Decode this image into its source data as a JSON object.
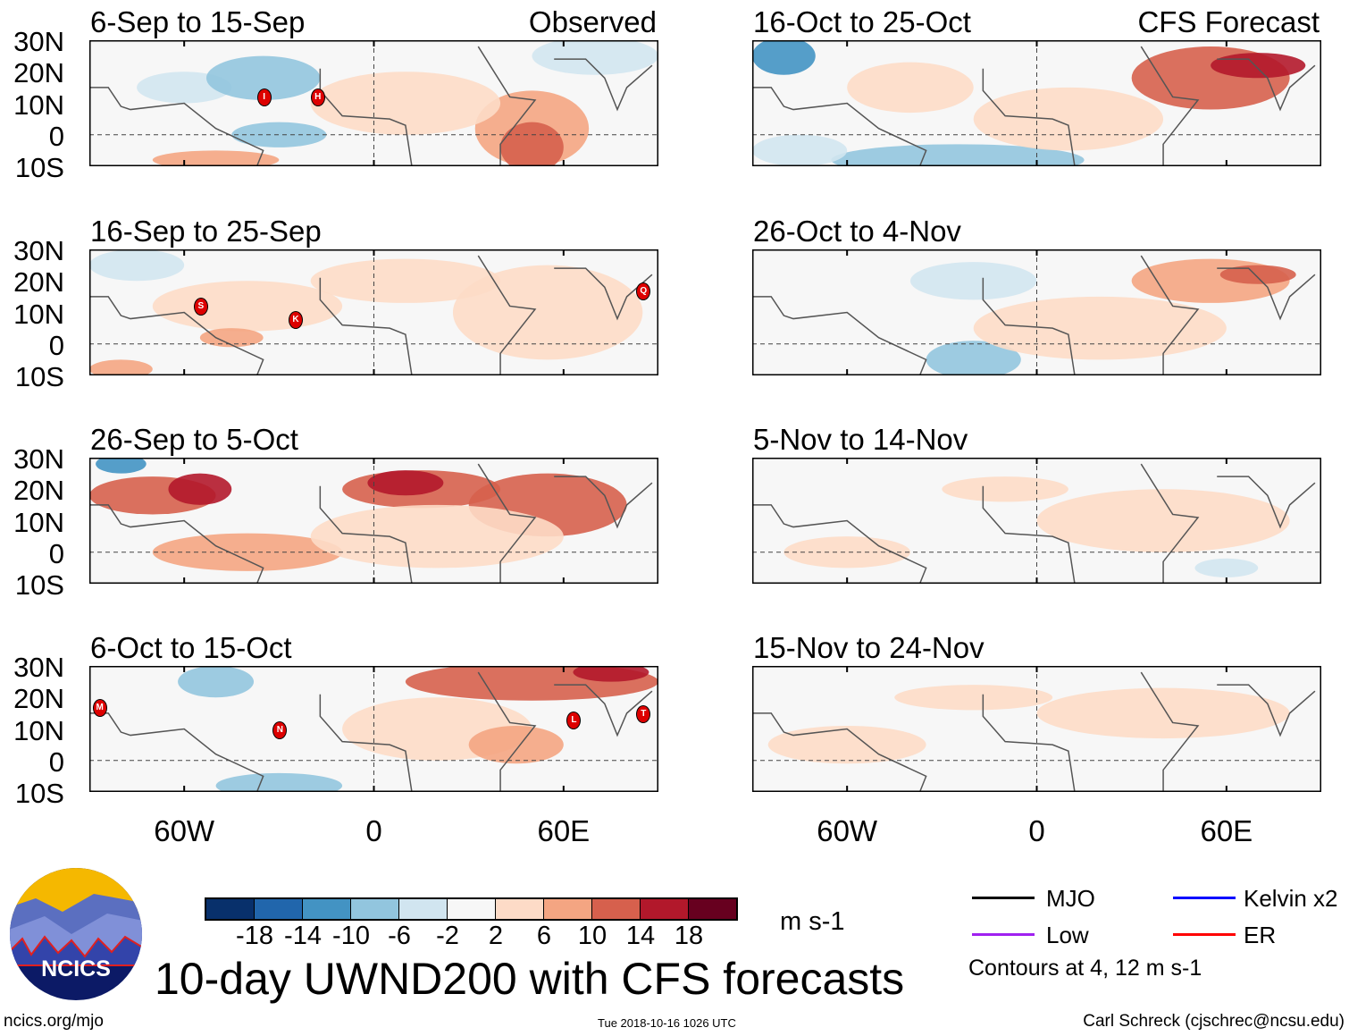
{
  "figure_title": "10-day UWND200 with CFS forecasts",
  "column_labels": {
    "left": "Observed",
    "right": "CFS Forecast"
  },
  "panels": [
    {
      "title": "6-Sep to 15-Sep",
      "column": "left",
      "storms": [
        "I",
        "H"
      ]
    },
    {
      "title": "16-Sep to 25-Sep",
      "column": "left",
      "storms": [
        "S",
        "K",
        "Q"
      ]
    },
    {
      "title": "26-Sep to 5-Oct",
      "column": "left",
      "storms": []
    },
    {
      "title": "6-Oct to 15-Oct",
      "column": "left",
      "storms": [
        "M",
        "N",
        "L",
        "T"
      ]
    },
    {
      "title": "16-Oct to 25-Oct",
      "column": "right",
      "storms": []
    },
    {
      "title": "26-Oct to 4-Nov",
      "column": "right",
      "storms": []
    },
    {
      "title": "5-Nov to 14-Nov",
      "column": "right",
      "storms": []
    },
    {
      "title": "15-Nov to 24-Nov",
      "column": "right",
      "storms": []
    }
  ],
  "lat_labels": [
    "30N",
    "20N",
    "10N",
    "0",
    "10S"
  ],
  "lon_labels": [
    "60W",
    "0",
    "60E"
  ],
  "colorbar": {
    "colors": [
      "#08306b",
      "#2166ac",
      "#4393c3",
      "#92c5de",
      "#d1e5f0",
      "#f7f7f7",
      "#fddbc7",
      "#f4a582",
      "#d6604d",
      "#b2182b",
      "#67001f"
    ],
    "ticks": [
      "-18",
      "-14",
      "-10",
      "-6",
      "-2",
      "2",
      "6",
      "10",
      "14",
      "18"
    ],
    "units": "m s-1"
  },
  "legend": {
    "items": [
      {
        "label": "MJO",
        "color": "#000000"
      },
      {
        "label": "Kelvin x2",
        "color": "#0000ff"
      },
      {
        "label": "Low",
        "color": "#a020f0"
      },
      {
        "label": "ER",
        "color": "#ff0000"
      }
    ],
    "contour_note": "Contours at 4, 12 m s-1"
  },
  "logo_text": "NCICS",
  "footer": {
    "url": "ncics.org/mjo",
    "timestamp": "Tue 2018-10-16 1026 UTC",
    "author": "Carl Schreck (cjschrec@ncsu.edu)"
  }
}
